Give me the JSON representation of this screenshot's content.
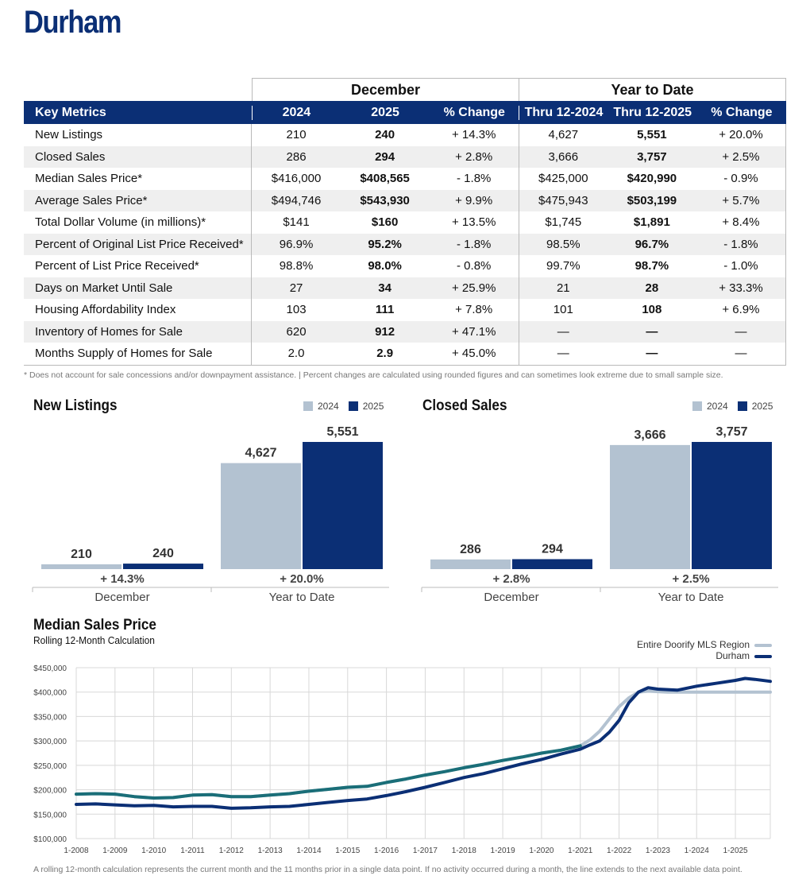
{
  "title": "Durham",
  "table": {
    "group_headers": [
      "December",
      "Year to Date"
    ],
    "columns": [
      "Key Metrics",
      "2024",
      "2025",
      "% Change",
      "Thru 12-2024",
      "Thru 12-2025",
      "% Change"
    ],
    "rows": [
      [
        "New Listings",
        "210",
        "240",
        "+ 14.3%",
        "4,627",
        "5,551",
        "+ 20.0%"
      ],
      [
        "Closed Sales",
        "286",
        "294",
        "+ 2.8%",
        "3,666",
        "3,757",
        "+ 2.5%"
      ],
      [
        "Median Sales Price*",
        "$416,000",
        "$408,565",
        "- 1.8%",
        "$425,000",
        "$420,990",
        "- 0.9%"
      ],
      [
        "Average Sales Price*",
        "$494,746",
        "$543,930",
        "+ 9.9%",
        "$475,943",
        "$503,199",
        "+ 5.7%"
      ],
      [
        "Total Dollar Volume (in millions)*",
        "$141",
        "$160",
        "+ 13.5%",
        "$1,745",
        "$1,891",
        "+ 8.4%"
      ],
      [
        "Percent of Original List Price Received*",
        "96.9%",
        "95.2%",
        "- 1.8%",
        "98.5%",
        "96.7%",
        "- 1.8%"
      ],
      [
        "Percent of List Price Received*",
        "98.8%",
        "98.0%",
        "- 0.8%",
        "99.7%",
        "98.7%",
        "- 1.0%"
      ],
      [
        "Days on Market Until Sale",
        "27",
        "34",
        "+ 25.9%",
        "21",
        "28",
        "+ 33.3%"
      ],
      [
        "Housing Affordability Index",
        "103",
        "111",
        "+ 7.8%",
        "101",
        "108",
        "+ 6.9%"
      ],
      [
        "Inventory of Homes for Sale",
        "620",
        "912",
        "+ 47.1%",
        "—",
        "—",
        "—"
      ],
      [
        "Months Supply of Homes for Sale",
        "2.0",
        "2.9",
        "+ 45.0%",
        "—",
        "—",
        "—"
      ]
    ],
    "footnote": "* Does not account for sale concessions and/or downpayment assistance. | Percent changes are calculated using rounded figures and can sometimes look extreme due to small sample size."
  },
  "colors": {
    "navy": "#0b2f75",
    "light": "#b3c2d1",
    "teal": "#1a6e78",
    "header_text": "#ffffff"
  },
  "chart_data": [
    {
      "type": "bar",
      "title": "New Listings",
      "legend": [
        "2024",
        "2025"
      ],
      "categories": [
        "December",
        "Year to Date"
      ],
      "series": [
        {
          "name": "2024",
          "values": [
            210,
            4627
          ],
          "labels": [
            "210",
            "4,627"
          ]
        },
        {
          "name": "2025",
          "values": [
            240,
            5551
          ],
          "labels": [
            "240",
            "5,551"
          ]
        }
      ],
      "changes": [
        "+ 14.3%",
        "+ 20.0%"
      ]
    },
    {
      "type": "bar",
      "title": "Closed Sales",
      "legend": [
        "2024",
        "2025"
      ],
      "categories": [
        "December",
        "Year to Date"
      ],
      "series": [
        {
          "name": "2024",
          "values": [
            286,
            3666
          ],
          "labels": [
            "286",
            "3,666"
          ]
        },
        {
          "name": "2025",
          "values": [
            294,
            3757
          ],
          "labels": [
            "294",
            "3,757"
          ]
        }
      ],
      "changes": [
        "+ 2.8%",
        "+ 2.5%"
      ]
    },
    {
      "type": "line",
      "title": "Median Sales Price",
      "subtitle": "Rolling 12-Month Calculation",
      "ylim": [
        100000,
        450000
      ],
      "yticks": [
        "$100,000",
        "$150,000",
        "$200,000",
        "$250,000",
        "$300,000",
        "$350,000",
        "$400,000",
        "$450,000"
      ],
      "xticks": [
        "1-2008",
        "1-2009",
        "1-2010",
        "1-2011",
        "1-2012",
        "1-2013",
        "1-2014",
        "1-2015",
        "1-2016",
        "1-2017",
        "1-2018",
        "1-2019",
        "1-2020",
        "1-2021",
        "1-2022",
        "1-2023",
        "1-2024",
        "1-2025"
      ],
      "x": [
        2008.0,
        2008.5,
        2009.0,
        2009.5,
        2010.0,
        2010.5,
        2011.0,
        2011.5,
        2012.0,
        2012.5,
        2013.0,
        2013.5,
        2014.0,
        2014.5,
        2015.0,
        2015.5,
        2016.0,
        2016.5,
        2017.0,
        2017.5,
        2018.0,
        2018.5,
        2019.0,
        2019.5,
        2020.0,
        2020.5,
        2021.0,
        2021.25,
        2021.5,
        2021.75,
        2022.0,
        2022.25,
        2022.5,
        2022.75,
        2023.0,
        2023.25,
        2023.5,
        2024.0,
        2024.5,
        2025.0,
        2025.25,
        2025.5,
        2025.9
      ],
      "series": [
        {
          "name": "Entire Doorify MLS Region",
          "color": "#b3c2d1",
          "values": [
            191000,
            192000,
            191000,
            186000,
            183000,
            184000,
            189000,
            190000,
            186000,
            186000,
            189000,
            192000,
            197000,
            201000,
            205000,
            207000,
            215000,
            222000,
            230000,
            237000,
            245000,
            252000,
            260000,
            267000,
            275000,
            281000,
            290000,
            302000,
            320000,
            345000,
            370000,
            388000,
            400000,
            402000,
            401000,
            400000,
            400000,
            400000,
            400000,
            400000,
            400000,
            400000,
            400000
          ]
        },
        {
          "name": "Durham",
          "color": "#0b2f75",
          "values": [
            170000,
            171000,
            169000,
            167000,
            168000,
            165000,
            166000,
            166000,
            162000,
            163000,
            165000,
            166000,
            170000,
            174000,
            178000,
            181000,
            188000,
            196000,
            205000,
            215000,
            225000,
            233000,
            243000,
            253000,
            262000,
            273000,
            283000,
            292000,
            300000,
            318000,
            342000,
            378000,
            400000,
            409000,
            406000,
            405000,
            404000,
            412000,
            418000,
            424000,
            428000,
            426000,
            422000
          ]
        }
      ],
      "note": "A rolling 12-month calculation represents the current month and the 11 months prior in a single data point. If no activity occurred during a month, the line extends to the next available data point."
    }
  ]
}
